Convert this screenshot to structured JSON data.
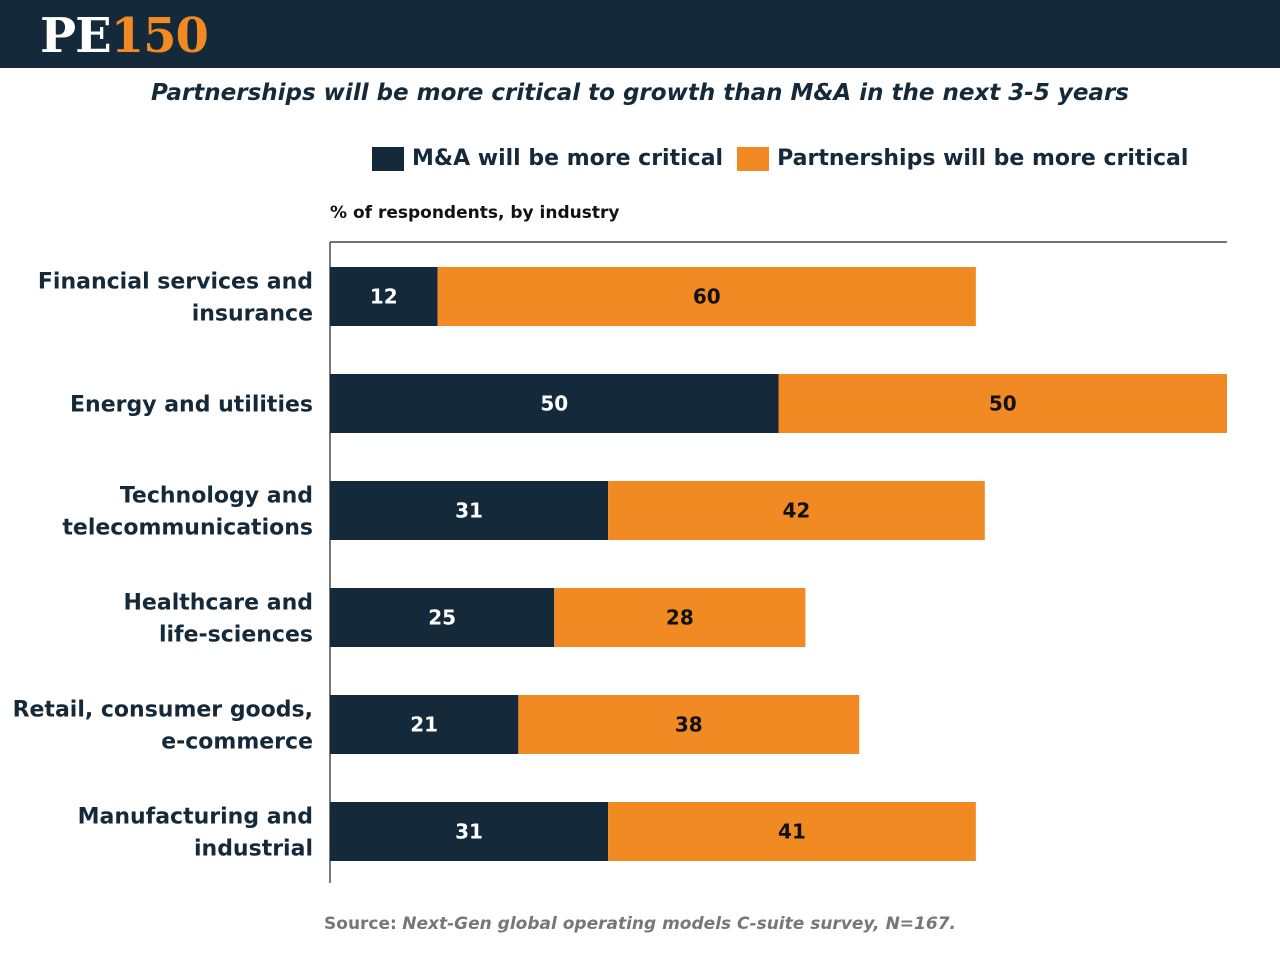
{
  "header": {
    "logo_pe": "PE",
    "logo_num": "150"
  },
  "subtitle": "Partnerships will be more critical to growth than M&A in the next 3-5 years",
  "legend": {
    "ma_label": "M&A will be more critical",
    "partnerships_label": "Partnerships will be more critical"
  },
  "colors": {
    "ma": "#14293a",
    "partnerships": "#f28a24",
    "header_bg": "#14293a"
  },
  "source": {
    "label": "Source:",
    "text": "Next-Gen global operating models C-suite survey, N=167."
  },
  "chart_data": {
    "type": "bar",
    "orientation": "horizontal",
    "stacked": true,
    "title": "Partnerships will be more critical to growth than M&A in the next 3-5 years",
    "xlabel": "% of respondents, by industry",
    "ylabel": "",
    "xlim": [
      0,
      100
    ],
    "grid": false,
    "legend_position": "top",
    "categories": [
      [
        "Financial services and",
        "insurance"
      ],
      [
        "Energy and utilities"
      ],
      [
        "Technology and",
        "telecommunications"
      ],
      [
        "Healthcare and",
        "life-sciences"
      ],
      [
        "Retail, consumer goods,",
        "e-commerce"
      ],
      [
        "Manufacturing and",
        "industrial"
      ]
    ],
    "series": [
      {
        "name": "M&A will be more critical",
        "values": [
          12,
          50,
          31,
          25,
          21,
          31
        ]
      },
      {
        "name": "Partnerships will be more critical",
        "values": [
          60,
          50,
          42,
          28,
          38,
          41
        ]
      }
    ]
  }
}
